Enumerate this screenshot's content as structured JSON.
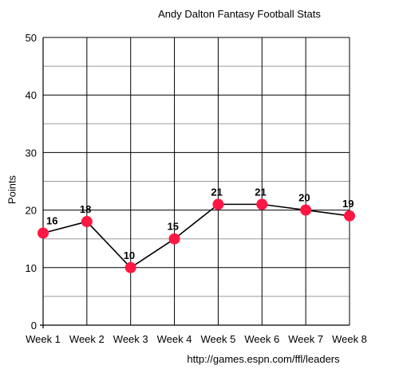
{
  "chart_data": {
    "type": "line",
    "title": "Andy Dalton Fantasy Football Stats",
    "xlabel": "",
    "ylabel": "Points",
    "source": "http://games.espn.com/ffl/leaders",
    "categories": [
      "Week 1",
      "Week 2",
      "Week 3",
      "Week 4",
      "Week 5",
      "Week 6",
      "Week 7",
      "Week 8"
    ],
    "series": [
      {
        "values": [
          16,
          18,
          10,
          15,
          21,
          21,
          20,
          19
        ]
      }
    ],
    "ylim": [
      0,
      50
    ],
    "yticks": [
      0,
      10,
      20,
      30,
      40,
      50
    ],
    "grid": true,
    "line_color": "#000000",
    "marker_color": "#ff1744"
  }
}
